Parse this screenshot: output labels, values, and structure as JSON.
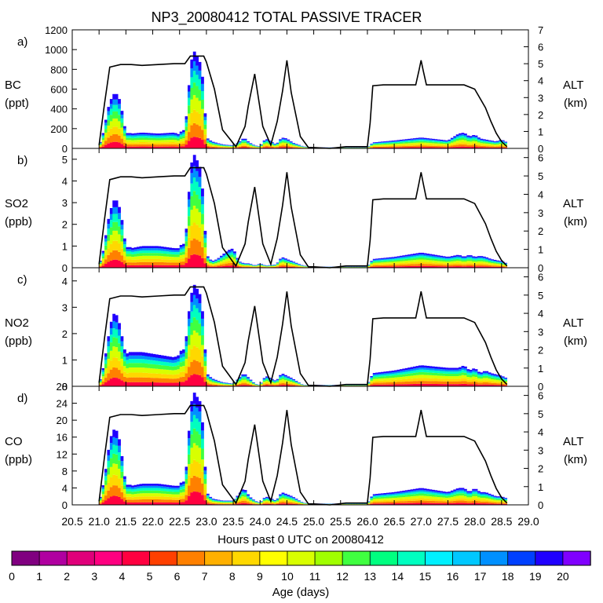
{
  "chart_data": {
    "type": "area",
    "title": "NP3_20080412 TOTAL PASSIVE TRACER",
    "xlabel": "Hours past 0 UTC on 20080412",
    "xlim": [
      20.5,
      29.0
    ],
    "x_ticks": [
      "20.5",
      "21.0",
      "21.5",
      "22.0",
      "22.5",
      "23.0",
      "23.5",
      "24.0",
      "24.5",
      "25.0",
      "25.5",
      "26.0",
      "26.5",
      "27.0",
      "27.5",
      "28.0",
      "28.5",
      "29.0"
    ],
    "altitude_axis": {
      "label": "ALT",
      "unit": "(km)",
      "profile_x": [
        21.0,
        21.1,
        21.2,
        21.4,
        21.6,
        21.8,
        22.1,
        22.4,
        22.6,
        22.7,
        22.95,
        23.0,
        23.15,
        23.3,
        23.55,
        23.72,
        23.78,
        23.9,
        24.05,
        24.2,
        24.32,
        24.42,
        24.5,
        24.58,
        24.75,
        24.9,
        25.0,
        25.3,
        25.6,
        26.0,
        26.05,
        26.1,
        26.3,
        26.9,
        26.96,
        27.0,
        27.04,
        27.1,
        27.3,
        27.5,
        27.8,
        28.0,
        28.2,
        28.3,
        28.4,
        28.5,
        28.6
      ],
      "profile_km": [
        0.2,
        2.6,
        4.8,
        4.95,
        4.95,
        4.9,
        4.95,
        5.0,
        5.0,
        5.45,
        5.45,
        5.1,
        3.5,
        1.1,
        0.1,
        1.3,
        2.5,
        4.4,
        1.3,
        0.2,
        1.6,
        3.4,
        5.2,
        3.3,
        0.7,
        0.05,
        0.05,
        0.0,
        0.1,
        0.1,
        1.5,
        3.7,
        3.75,
        3.75,
        4.6,
        5.2,
        4.6,
        3.75,
        3.75,
        3.75,
        3.75,
        3.5,
        2.4,
        1.6,
        0.9,
        0.4,
        0.1
      ]
    },
    "panels": [
      {
        "label": "a)",
        "species": "BC",
        "unit": "(ppt)",
        "ylim": [
          0,
          1200
        ],
        "y_ticks": [
          "0",
          "200",
          "400",
          "600",
          "800",
          "1000",
          "1200"
        ],
        "alt_ylim": [
          0,
          7
        ],
        "alt_ticks": [
          "0",
          "1",
          "2",
          "3",
          "4",
          "5",
          "6",
          "7"
        ],
        "x": [
          21.0,
          21.1,
          21.15,
          21.2,
          21.25,
          21.3,
          21.35,
          21.4,
          21.45,
          21.5,
          21.55,
          21.6,
          21.8,
          22.1,
          22.4,
          22.5,
          22.55,
          22.6,
          22.65,
          22.7,
          22.75,
          22.8,
          22.85,
          22.9,
          22.95,
          23.0,
          23.1,
          23.3,
          23.5,
          23.6,
          23.7,
          23.8,
          23.9,
          24.0,
          24.1,
          24.3,
          24.4,
          24.5,
          24.6,
          24.8,
          25.0,
          25.5,
          26.0,
          26.1,
          26.5,
          27.0,
          27.5,
          27.7,
          27.8,
          27.9,
          28.0,
          28.1,
          28.2,
          28.3,
          28.4,
          28.5,
          28.6
        ],
        "values": [
          20,
          200,
          380,
          460,
          540,
          560,
          540,
          460,
          300,
          150,
          160,
          150,
          160,
          150,
          160,
          140,
          200,
          170,
          480,
          800,
          1000,
          960,
          900,
          850,
          600,
          110,
          70,
          40,
          30,
          60,
          110,
          60,
          30,
          20,
          100,
          40,
          110,
          100,
          60,
          20,
          10,
          10,
          10,
          60,
          80,
          110,
          80,
          150,
          160,
          120,
          140,
          100,
          90,
          80,
          70,
          90,
          60
        ]
      },
      {
        "label": "b)",
        "species": "SO2",
        "unit": "(ppb)",
        "ylim": [
          0,
          5.5
        ],
        "y_ticks": [
          "0",
          "1",
          "2",
          "3",
          "4",
          "5"
        ],
        "alt_ylim": [
          0,
          6.5
        ],
        "alt_ticks": [
          "0",
          "1",
          "2",
          "3",
          "4",
          "5",
          "6"
        ],
        "x": [
          21.0,
          21.1,
          21.15,
          21.2,
          21.25,
          21.3,
          21.35,
          21.4,
          21.45,
          21.5,
          21.55,
          21.6,
          21.8,
          22.1,
          22.4,
          22.5,
          22.55,
          22.6,
          22.65,
          22.7,
          22.75,
          22.8,
          22.85,
          22.9,
          22.95,
          23.0,
          23.1,
          23.2,
          23.3,
          23.4,
          23.5,
          23.6,
          23.7,
          23.8,
          23.9,
          24.0,
          24.1,
          24.3,
          24.4,
          24.5,
          24.6,
          24.8,
          25.0,
          25.5,
          26.0,
          26.1,
          26.5,
          27.0,
          27.5,
          27.7,
          27.8,
          27.9,
          28.0,
          28.1,
          28.2,
          28.3,
          28.4,
          28.5,
          28.6
        ],
        "values": [
          0.1,
          1.0,
          2.0,
          2.5,
          3.0,
          3.2,
          3.0,
          2.6,
          1.8,
          0.9,
          1.0,
          0.9,
          1.0,
          1.0,
          0.9,
          0.9,
          1.2,
          1.0,
          2.6,
          4.4,
          5.3,
          5.1,
          4.8,
          4.5,
          2.8,
          0.6,
          0.3,
          0.4,
          0.6,
          0.8,
          0.9,
          0.3,
          0.2,
          0.2,
          0.1,
          0.2,
          0.1,
          0.15,
          0.5,
          0.4,
          0.3,
          0.1,
          0.05,
          0.05,
          0.05,
          0.4,
          0.5,
          0.7,
          0.5,
          0.6,
          0.5,
          0.6,
          0.5,
          0.55,
          0.5,
          0.4,
          0.35,
          0.3,
          0.2
        ]
      },
      {
        "label": "c)",
        "species": "NO2",
        "unit": "(ppb)",
        "ylim": [
          0,
          4.5
        ],
        "y_ticks": [
          "0",
          "1",
          "2",
          "3",
          "4"
        ],
        "alt_ylim": [
          0,
          6.5
        ],
        "alt_ticks": [
          "0",
          "1",
          "2",
          "3",
          "4",
          "5",
          "6"
        ],
        "x": [
          21.0,
          21.1,
          21.15,
          21.2,
          21.25,
          21.3,
          21.35,
          21.4,
          21.45,
          21.5,
          21.55,
          21.6,
          21.8,
          22.1,
          22.4,
          22.5,
          22.55,
          22.6,
          22.65,
          22.7,
          22.75,
          22.8,
          22.85,
          22.9,
          22.95,
          23.0,
          23.1,
          23.3,
          23.5,
          23.6,
          23.7,
          23.8,
          23.9,
          24.0,
          24.1,
          24.3,
          24.4,
          24.5,
          24.6,
          24.8,
          25.0,
          25.5,
          26.0,
          26.1,
          26.5,
          27.0,
          27.5,
          27.7,
          27.8,
          27.9,
          28.0,
          28.1,
          28.2,
          28.3,
          28.4,
          28.5,
          28.6
        ],
        "values": [
          0.05,
          0.9,
          1.6,
          2.2,
          2.7,
          2.8,
          2.6,
          2.2,
          1.6,
          1.2,
          1.3,
          1.3,
          1.3,
          1.2,
          1.1,
          1.2,
          1.5,
          1.3,
          2.5,
          3.2,
          3.9,
          3.8,
          3.6,
          3.4,
          2.3,
          0.5,
          0.3,
          0.15,
          0.1,
          0.3,
          0.5,
          0.3,
          0.1,
          0.05,
          0.4,
          0.2,
          0.5,
          0.4,
          0.3,
          0.05,
          0.05,
          0.05,
          0.05,
          0.5,
          0.6,
          0.8,
          0.7,
          0.7,
          0.8,
          0.6,
          0.7,
          0.5,
          0.6,
          0.5,
          0.45,
          0.4,
          0.3
        ]
      },
      {
        "label": "d)",
        "species": "CO",
        "unit": "(ppb)",
        "ylim": [
          0,
          28
        ],
        "y_ticks": [
          "0",
          "4",
          "8",
          "12",
          "16",
          "20",
          "24",
          "28"
        ],
        "alt_ylim": [
          0,
          6.5
        ],
        "alt_ticks": [
          "0",
          "1",
          "2",
          "3",
          "4",
          "5",
          "6"
        ],
        "x": [
          21.0,
          21.1,
          21.15,
          21.2,
          21.25,
          21.3,
          21.35,
          21.4,
          21.45,
          21.5,
          21.55,
          21.6,
          21.8,
          22.1,
          22.4,
          22.5,
          22.55,
          22.6,
          22.65,
          22.7,
          22.75,
          22.8,
          22.85,
          22.9,
          22.95,
          23.0,
          23.1,
          23.3,
          23.5,
          23.6,
          23.7,
          23.8,
          23.9,
          24.0,
          24.1,
          24.3,
          24.4,
          24.5,
          24.6,
          24.8,
          25.0,
          25.5,
          26.0,
          26.1,
          26.5,
          27.0,
          27.5,
          27.7,
          27.8,
          27.9,
          28.0,
          28.1,
          28.2,
          28.3,
          28.4,
          28.5,
          28.6
        ],
        "values": [
          0.5,
          6,
          11,
          15,
          17.5,
          18,
          17,
          14,
          9,
          4.5,
          5,
          4.5,
          5,
          5,
          4.5,
          4.5,
          6,
          5,
          13,
          22,
          27,
          26,
          25,
          24,
          15,
          3,
          1.5,
          1,
          1,
          2.5,
          4,
          2,
          1,
          0.5,
          2,
          1,
          3,
          2.5,
          2,
          0.5,
          0.3,
          0.3,
          0.3,
          2.5,
          3,
          4,
          3,
          4,
          4,
          3,
          4,
          3,
          3,
          2.5,
          2,
          2,
          1.5
        ]
      }
    ],
    "colorbar": {
      "label": "Age (days)",
      "tick_labels": [
        "0",
        "1",
        "2",
        "3",
        "4",
        "5",
        "6",
        "7",
        "8",
        "9",
        "10",
        "11",
        "12",
        "13",
        "14",
        "15",
        "16",
        "17",
        "18",
        "19",
        "20"
      ],
      "colors": [
        "#800080",
        "#b000a0",
        "#e0007a",
        "#ff0080",
        "#ff0040",
        "#ff4000",
        "#ff8000",
        "#ffb000",
        "#ffd800",
        "#ffff00",
        "#d8ff00",
        "#a0ff00",
        "#40ff40",
        "#00ff80",
        "#00ffc0",
        "#00f0ff",
        "#00c8ff",
        "#0090ff",
        "#0040ff",
        "#2000ff",
        "#8000ff"
      ]
    }
  }
}
